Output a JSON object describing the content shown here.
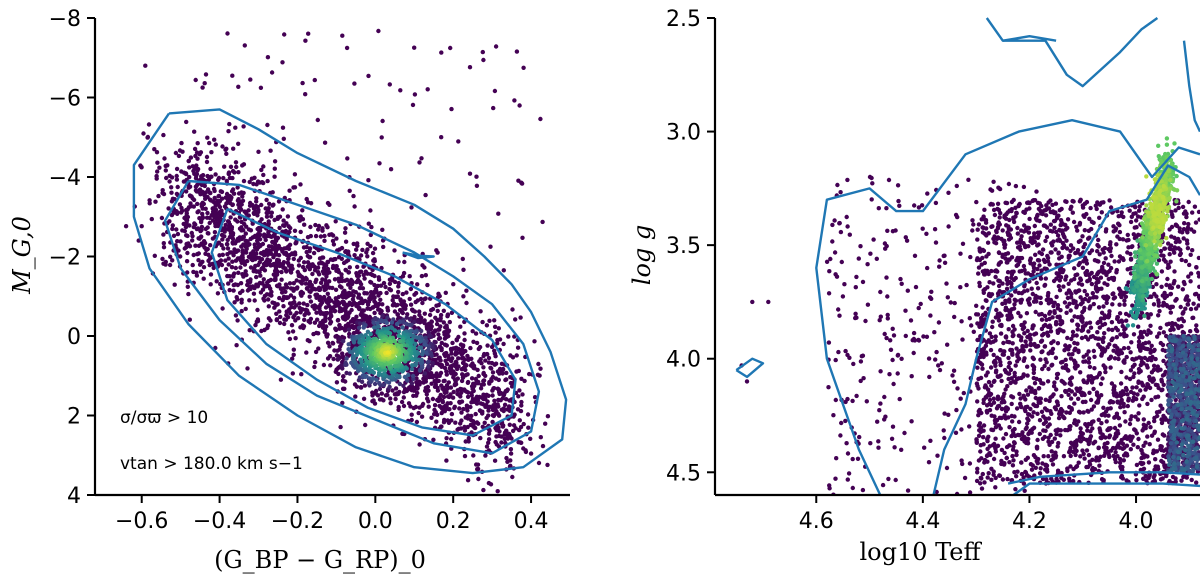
{
  "chart_data": [
    {
      "type": "scatter",
      "xlabel": "(G_BP − G_RP)_0",
      "ylabel": "M_G,0",
      "xlim": [
        -0.72,
        0.5
      ],
      "ylim": [
        4,
        -8
      ],
      "y_inverted": true,
      "xticks": [
        -0.6,
        -0.4,
        -0.2,
        0.0,
        0.2,
        0.4
      ],
      "xtick_labels": [
        "−0.6",
        "−0.4",
        "−0.2",
        "0.0",
        "0.2",
        "0.4"
      ],
      "yticks": [
        -8,
        -6,
        -4,
        -2,
        0,
        2,
        4
      ],
      "ytick_labels": [
        "−8",
        "−6",
        "−4",
        "−2",
        "0",
        "2",
        "4"
      ],
      "annotations": [
        "σ/σϖ > 10",
        "vtan > 180.0 km s−1"
      ],
      "point_color": "#440154",
      "contour_color": "#1f77b4",
      "grid": false,
      "density_peak": {
        "x": 0.03,
        "y": 0.4
      },
      "contours": [
        [
          [
            -0.53,
            -5.6
          ],
          [
            -0.4,
            -5.7
          ],
          [
            -0.3,
            -5.2
          ],
          [
            -0.2,
            -4.6
          ],
          [
            -0.05,
            -3.9
          ],
          [
            0.1,
            -3.3
          ],
          [
            0.2,
            -2.7
          ],
          [
            0.28,
            -2.0
          ],
          [
            0.35,
            -1.3
          ],
          [
            0.4,
            -0.6
          ],
          [
            0.45,
            0.4
          ],
          [
            0.49,
            1.6
          ],
          [
            0.48,
            2.6
          ],
          [
            0.38,
            3.3
          ],
          [
            0.25,
            3.45
          ],
          [
            0.1,
            3.3
          ],
          [
            -0.05,
            2.8
          ],
          [
            -0.2,
            2.0
          ],
          [
            -0.35,
            1.0
          ],
          [
            -0.48,
            -0.3
          ],
          [
            -0.58,
            -1.7
          ],
          [
            -0.62,
            -3.0
          ],
          [
            -0.62,
            -4.3
          ],
          [
            -0.53,
            -5.6
          ]
        ],
        [
          [
            -0.48,
            -3.9
          ],
          [
            -0.35,
            -3.8
          ],
          [
            -0.2,
            -3.3
          ],
          [
            -0.05,
            -2.8
          ],
          [
            0.1,
            -2.1
          ],
          [
            0.2,
            -1.5
          ],
          [
            0.3,
            -0.8
          ],
          [
            0.38,
            0.2
          ],
          [
            0.42,
            1.4
          ],
          [
            0.4,
            2.4
          ],
          [
            0.3,
            2.95
          ],
          [
            0.15,
            2.7
          ],
          [
            0.0,
            2.1
          ],
          [
            -0.15,
            1.5
          ],
          [
            -0.28,
            0.7
          ],
          [
            -0.4,
            -0.4
          ],
          [
            -0.5,
            -1.7
          ],
          [
            -0.54,
            -2.9
          ],
          [
            -0.48,
            -3.9
          ]
        ],
        [
          [
            -0.38,
            -3.2
          ],
          [
            -0.25,
            -2.6
          ],
          [
            -0.1,
            -2.1
          ],
          [
            0.05,
            -1.5
          ],
          [
            0.18,
            -0.8
          ],
          [
            0.3,
            0.1
          ],
          [
            0.36,
            1.1
          ],
          [
            0.35,
            2.0
          ],
          [
            0.25,
            2.5
          ],
          [
            0.12,
            2.3
          ],
          [
            -0.02,
            1.8
          ],
          [
            -0.15,
            1.1
          ],
          [
            -0.28,
            0.2
          ],
          [
            -0.38,
            -0.9
          ],
          [
            -0.42,
            -2.1
          ],
          [
            -0.38,
            -3.2
          ]
        ],
        [
          [
            0.07,
            -2.1
          ],
          [
            0.11,
            -2.02
          ],
          [
            0.15,
            -2.0
          ],
          [
            0.11,
            -1.96
          ],
          [
            0.07,
            -2.1
          ]
        ]
      ]
    },
    {
      "type": "scatter",
      "xlabel": "log10 Teff",
      "ylabel": "log g",
      "xlim": [
        4.79,
        3.88
      ],
      "ylim": [
        4.6,
        2.5
      ],
      "x_inverted": true,
      "y_inverted": true,
      "xticks": [
        4.6,
        4.4,
        4.2,
        4.0
      ],
      "xtick_labels": [
        "4.6",
        "4.4",
        "4.2",
        "4.0"
      ],
      "yticks": [
        2.5,
        3.0,
        3.5,
        4.0,
        4.5
      ],
      "ytick_labels": [
        "2.5",
        "3.0",
        "3.5",
        "4.0",
        "4.5"
      ],
      "point_color": "#440154",
      "contour_color": "#1f77b4",
      "grid": false,
      "density_ridge": [
        [
          4.0,
          3.75
        ],
        [
          3.97,
          3.45
        ],
        [
          3.94,
          3.15
        ]
      ],
      "contours": [
        [
          [
            4.75,
            4.05
          ],
          [
            4.72,
            4.0
          ],
          [
            4.7,
            4.02
          ],
          [
            4.73,
            4.08
          ],
          [
            4.75,
            4.05
          ]
        ],
        [
          [
            4.48,
            4.6
          ],
          [
            4.52,
            4.4
          ],
          [
            4.58,
            4.0
          ],
          [
            4.6,
            3.6
          ],
          [
            4.58,
            3.3
          ],
          [
            4.5,
            3.25
          ],
          [
            4.45,
            3.35
          ],
          [
            4.4,
            3.35
          ],
          [
            4.32,
            3.1
          ],
          [
            4.22,
            3.0
          ],
          [
            4.12,
            2.95
          ],
          [
            4.03,
            3.0
          ],
          [
            3.97,
            3.2
          ],
          [
            3.92,
            3.07
          ],
          [
            3.88,
            3.1
          ]
        ],
        [
          [
            4.38,
            4.6
          ],
          [
            4.36,
            4.4
          ],
          [
            4.32,
            4.2
          ],
          [
            4.3,
            4.0
          ],
          [
            4.27,
            3.75
          ],
          [
            4.2,
            3.65
          ],
          [
            4.1,
            3.55
          ],
          [
            4.05,
            3.35
          ],
          [
            3.98,
            3.3
          ],
          [
            3.94,
            3.15
          ],
          [
            3.9,
            3.2
          ],
          [
            3.88,
            3.28
          ]
        ],
        [
          [
            4.24,
            4.55
          ],
          [
            4.18,
            4.52
          ],
          [
            4.05,
            4.5
          ],
          [
            3.95,
            4.5
          ],
          [
            3.88,
            4.51
          ]
        ],
        [
          [
            4.23,
            4.6
          ],
          [
            4.2,
            4.55
          ],
          [
            4.05,
            4.55
          ],
          [
            3.95,
            4.55
          ],
          [
            3.88,
            4.56
          ]
        ],
        [
          [
            4.28,
            2.5
          ],
          [
            4.25,
            2.6
          ],
          [
            4.17,
            2.6
          ],
          [
            4.13,
            2.75
          ],
          [
            4.1,
            2.8
          ],
          [
            4.03,
            2.65
          ],
          [
            3.99,
            2.55
          ],
          [
            3.96,
            2.5
          ]
        ],
        [
          [
            4.25,
            2.6
          ],
          [
            4.2,
            2.58
          ],
          [
            4.15,
            2.6
          ]
        ],
        [
          [
            3.91,
            2.6
          ],
          [
            3.9,
            2.8
          ],
          [
            3.89,
            2.95
          ],
          [
            3.88,
            3.0
          ]
        ]
      ]
    }
  ]
}
